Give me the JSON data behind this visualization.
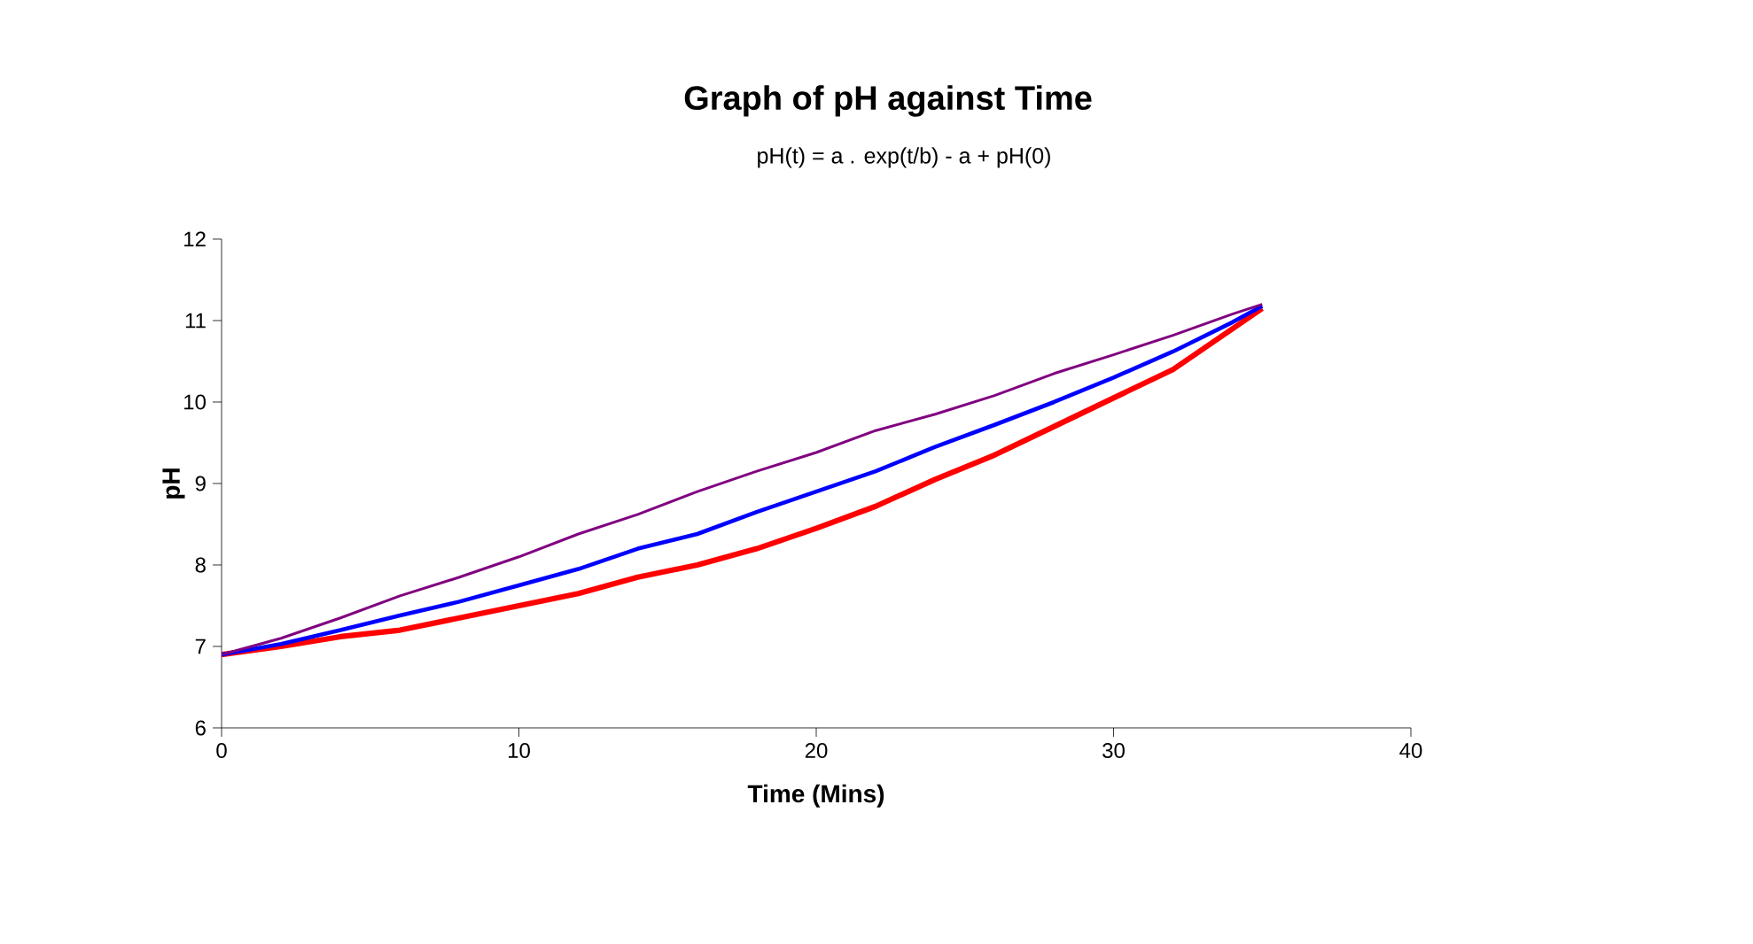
{
  "chart_data": {
    "type": "line",
    "title": "Graph of pH against Time",
    "subtitle": "pH(t) = a . exp(t/b) - a + pH(0)",
    "xlabel": "Time (Mins)",
    "ylabel": "pH",
    "x": [
      0,
      2,
      4,
      6,
      8,
      10,
      12,
      14,
      16,
      18,
      20,
      22,
      24,
      26,
      28,
      30,
      32,
      34,
      35
    ],
    "series": [
      {
        "color": "#ff0000",
        "values": [
          6.9,
          7.0,
          7.12,
          7.2,
          7.35,
          7.5,
          7.65,
          7.85,
          8.0,
          8.2,
          8.45,
          8.72,
          9.05,
          9.35,
          9.7,
          10.05,
          10.4,
          10.9,
          11.15
        ]
      },
      {
        "color": "#0000ff",
        "values": [
          6.9,
          7.03,
          7.2,
          7.38,
          7.55,
          7.75,
          7.95,
          8.2,
          8.38,
          8.65,
          8.9,
          9.15,
          9.45,
          9.72,
          10.0,
          10.3,
          10.62,
          10.98,
          11.18
        ]
      },
      {
        "color": "#800080",
        "values": [
          6.9,
          7.1,
          7.35,
          7.62,
          7.85,
          8.1,
          8.38,
          8.62,
          8.9,
          9.15,
          9.38,
          9.65,
          9.85,
          10.08,
          10.35,
          10.58,
          10.82,
          11.08,
          11.2
        ]
      }
    ],
    "xlim": [
      0,
      40
    ],
    "xticks": [
      0,
      10,
      20,
      30,
      40
    ],
    "ylim": [
      6,
      12
    ],
    "yticks": [
      6,
      7,
      8,
      9,
      10,
      11,
      12
    ],
    "grid": false,
    "legend": false,
    "marker": "none",
    "line_style": "solid"
  }
}
